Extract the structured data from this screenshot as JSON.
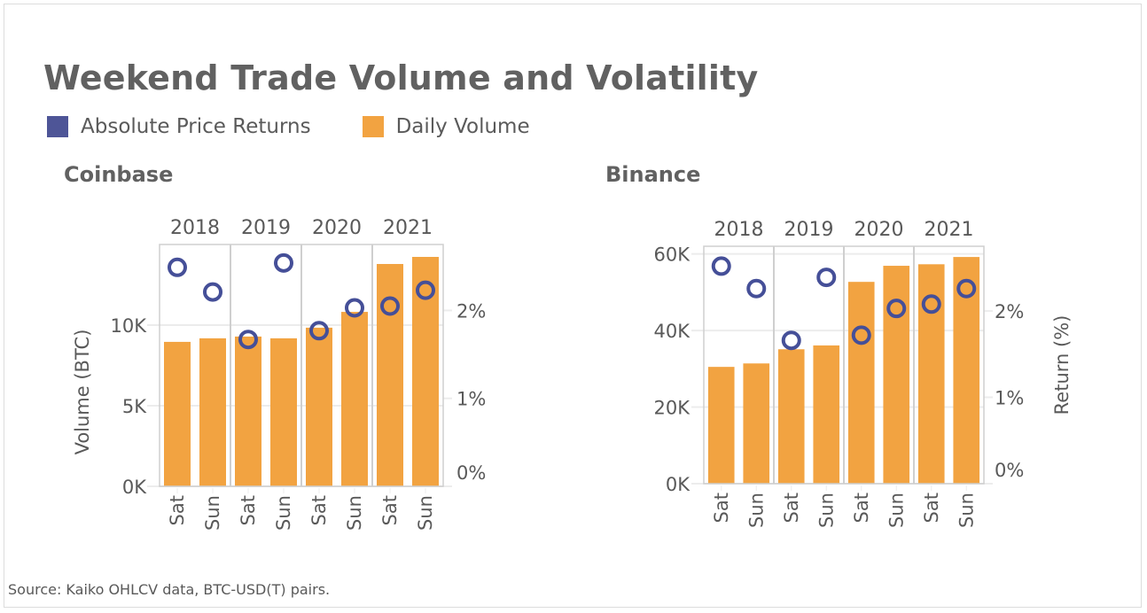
{
  "title": "Weekend Trade Volume and Volatility",
  "legend": [
    {
      "label": "Absolute Price Returns",
      "color": "#4e5597"
    },
    {
      "label": "Daily Volume",
      "color": "#f2a341"
    }
  ],
  "source": "Source: Kaiko OHLCV data, BTC-USD(T) pairs.",
  "colors": {
    "bar": "#f2a341",
    "marker": "#454f98",
    "frame": "#cfcfcf",
    "grid": "#ececec"
  },
  "chart_data": [
    {
      "type": "bar",
      "title": "Coinbase",
      "years": [
        "2018",
        "2019",
        "2020",
        "2021"
      ],
      "days": [
        "Sat",
        "Sun"
      ],
      "ylabel": "Volume (BTC)",
      "y2label": "",
      "ylim": [
        0,
        15000
      ],
      "yticks": [
        0,
        5000,
        10000
      ],
      "ytick_labels": [
        "0K",
        "5K",
        "10K"
      ],
      "y2lim": [
        0,
        2.75
      ],
      "y2ticks": [
        0,
        1,
        2
      ],
      "y2tick_labels": [
        "0%",
        "1%",
        "2%"
      ],
      "series": [
        {
          "name": "Daily Volume",
          "kind": "bar",
          "values": [
            8960,
            9180,
            9290,
            9180,
            9840,
            10820,
            13790,
            14230
          ]
        },
        {
          "name": "Absolute Price Returns",
          "kind": "circle",
          "axis": "right",
          "values": [
            2.49,
            2.21,
            1.67,
            2.54,
            1.77,
            2.03,
            2.05,
            2.23
          ]
        }
      ]
    },
    {
      "type": "bar",
      "title": "Binance",
      "years": [
        "2018",
        "2019",
        "2020",
        "2021"
      ],
      "days": [
        "Sat",
        "Sun"
      ],
      "ylabel": "",
      "y2label": "Return (%)",
      "ylim": [
        0,
        62000
      ],
      "yticks": [
        0,
        20000,
        40000,
        60000
      ],
      "ytick_labels": [
        "0K",
        "20K",
        "40K",
        "60K"
      ],
      "y2lim": [
        0,
        2.75
      ],
      "y2ticks": [
        0,
        1,
        2
      ],
      "y2tick_labels": [
        "0%",
        "1%",
        "2%"
      ],
      "series": [
        {
          "name": "Daily Volume",
          "kind": "bar",
          "values": [
            30500,
            31400,
            35100,
            36100,
            52700,
            56900,
            57300,
            59200
          ]
        },
        {
          "name": "Absolute Price Returns",
          "kind": "circle",
          "axis": "right",
          "values": [
            2.52,
            2.26,
            1.66,
            2.39,
            1.72,
            2.03,
            2.08,
            2.26
          ]
        }
      ]
    }
  ]
}
